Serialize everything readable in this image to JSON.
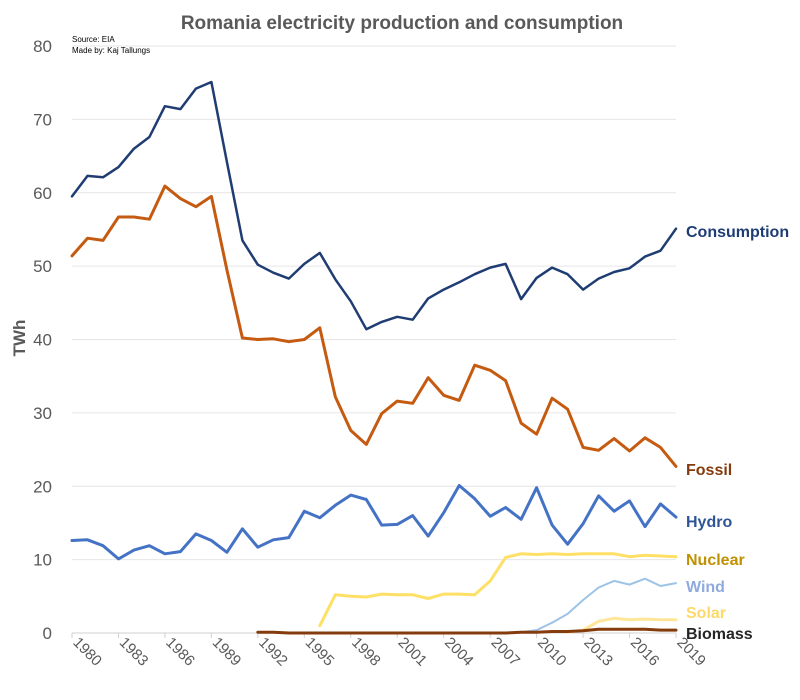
{
  "chart_data": {
    "type": "line",
    "title": "Romania electricity production and consumption",
    "source_note": "Source: EIA",
    "author_note": "Made by: Kaj Tallungs",
    "ylabel": "TWh",
    "xlabel": "",
    "ylim": [
      0,
      80
    ],
    "yticks": [
      0,
      10,
      20,
      30,
      40,
      50,
      60,
      70,
      80
    ],
    "xlim": [
      1980,
      2019
    ],
    "xticks": [
      1980,
      1983,
      1986,
      1989,
      1992,
      1995,
      1998,
      2001,
      2004,
      2007,
      2010,
      2013,
      2016,
      2019
    ],
    "grid": true,
    "legend": "inline labels at right end of lines",
    "series": [
      {
        "name": "Consumption",
        "color": "#1f3d73",
        "stroke_width": 2.5,
        "x": [
          1980,
          1981,
          1982,
          1983,
          1984,
          1985,
          1986,
          1987,
          1988,
          1989,
          1990,
          1991,
          1992,
          1993,
          1994,
          1995,
          1996,
          1997,
          1998,
          1999,
          2000,
          2001,
          2002,
          2003,
          2004,
          2005,
          2006,
          2007,
          2008,
          2009,
          2010,
          2011,
          2012,
          2013,
          2014,
          2015,
          2016,
          2017,
          2018,
          2019
        ],
        "values": [
          59.5,
          62.3,
          62.1,
          63.5,
          66,
          67.6,
          71.8,
          71.4,
          74.2,
          75.1,
          64.2,
          53.5,
          50.2,
          49.1,
          48.3,
          50.3,
          51.8,
          48.2,
          45.2,
          41.4,
          42.4,
          43.1,
          42.7,
          45.6,
          46.8,
          47.8,
          48.9,
          49.8,
          50.3,
          45.5,
          48.4,
          49.8,
          48.9,
          46.8,
          48.3,
          49.2,
          49.7,
          51.3,
          52.1,
          55.1
        ]
      },
      {
        "name": "Fossil",
        "color": "#c55a11",
        "label_color": "#843c0c",
        "stroke_width": 3,
        "x": [
          1980,
          1981,
          1982,
          1983,
          1984,
          1985,
          1986,
          1987,
          1988,
          1989,
          1990,
          1991,
          1992,
          1993,
          1994,
          1995,
          1996,
          1997,
          1998,
          1999,
          2000,
          2001,
          2002,
          2003,
          2004,
          2005,
          2006,
          2007,
          2008,
          2009,
          2010,
          2011,
          2012,
          2013,
          2014,
          2015,
          2016,
          2017,
          2018,
          2019
        ],
        "values": [
          51.4,
          53.8,
          53.5,
          56.7,
          56.7,
          56.4,
          60.9,
          59.2,
          58.1,
          59.5,
          49.5,
          40.2,
          40,
          40.1,
          39.7,
          40,
          41.6,
          32.2,
          27.6,
          25.7,
          29.9,
          31.6,
          31.3,
          34.8,
          32.4,
          31.7,
          36.5,
          35.8,
          34.4,
          28.6,
          27.1,
          32,
          30.5,
          25.3,
          24.9,
          26.5,
          24.8,
          26.6,
          25.3,
          22.7
        ]
      },
      {
        "name": "Hydro",
        "color": "#4472c4",
        "label_color": "#2f5597",
        "stroke_width": 3,
        "x": [
          1980,
          1981,
          1982,
          1983,
          1984,
          1985,
          1986,
          1987,
          1988,
          1989,
          1990,
          1991,
          1992,
          1993,
          1994,
          1995,
          1996,
          1997,
          1998,
          1999,
          2000,
          2001,
          2002,
          2003,
          2004,
          2005,
          2006,
          2007,
          2008,
          2009,
          2010,
          2011,
          2012,
          2013,
          2014,
          2015,
          2016,
          2017,
          2018,
          2019
        ],
        "values": [
          12.6,
          12.7,
          11.9,
          10.1,
          11.3,
          11.9,
          10.8,
          11.1,
          13.5,
          12.6,
          11,
          14.2,
          11.7,
          12.7,
          13,
          16.6,
          15.7,
          17.4,
          18.8,
          18.2,
          14.7,
          14.8,
          16,
          13.2,
          16.4,
          20.1,
          18.3,
          15.9,
          17.1,
          15.5,
          19.8,
          14.7,
          12.1,
          14.9,
          18.7,
          16.6,
          18,
          14.5,
          17.6,
          15.8
        ]
      },
      {
        "name": "Nuclear",
        "color": "#ffe066",
        "label_color": "#bf9000",
        "stroke_width": 3,
        "x": [
          1996,
          1997,
          1998,
          1999,
          2000,
          2001,
          2002,
          2003,
          2004,
          2005,
          2006,
          2007,
          2008,
          2009,
          2010,
          2011,
          2012,
          2013,
          2014,
          2015,
          2016,
          2017,
          2018,
          2019
        ],
        "values": [
          1,
          5.2,
          5.0,
          4.9,
          5.3,
          5.2,
          5.2,
          4.7,
          5.3,
          5.3,
          5.2,
          7.1,
          10.3,
          10.8,
          10.7,
          10.8,
          10.7,
          10.8,
          10.8,
          10.8,
          10.4,
          10.6,
          10.5,
          10.4
        ]
      },
      {
        "name": "Wind",
        "color": "#9dc3e6",
        "label_color": "#8faadc",
        "stroke_width": 2,
        "x": [
          2009,
          2010,
          2011,
          2012,
          2013,
          2014,
          2015,
          2016,
          2017,
          2018,
          2019
        ],
        "values": [
          0.1,
          0.4,
          1.4,
          2.6,
          4.5,
          6.2,
          7.1,
          6.6,
          7.4,
          6.4,
          6.8
        ]
      },
      {
        "name": "Solar",
        "color": "#ffe699",
        "label_color": "#ffd966",
        "stroke_width": 3,
        "x": [
          2012,
          2013,
          2014,
          2015,
          2016,
          2017,
          2018,
          2019
        ],
        "values": [
          0.1,
          0.4,
          1.6,
          2,
          1.8,
          1.9,
          1.8,
          1.8
        ]
      },
      {
        "name": "Biomass",
        "color": "#843c0c",
        "label_color": "#262626",
        "stroke_width": 3,
        "x": [
          1992,
          1993,
          1994,
          1995,
          1996,
          1997,
          1998,
          1999,
          2000,
          2001,
          2002,
          2003,
          2004,
          2005,
          2006,
          2007,
          2008,
          2009,
          2010,
          2011,
          2012,
          2013,
          2014,
          2015,
          2016,
          2017,
          2018,
          2019
        ],
        "values": [
          0.1,
          0.1,
          0,
          0,
          0,
          0,
          0,
          0,
          0,
          0,
          0,
          0,
          0,
          0,
          0,
          0,
          0,
          0.1,
          0.1,
          0.2,
          0.2,
          0.3,
          0.5,
          0.5,
          0.5,
          0.5,
          0.4,
          0.4
        ]
      }
    ]
  }
}
